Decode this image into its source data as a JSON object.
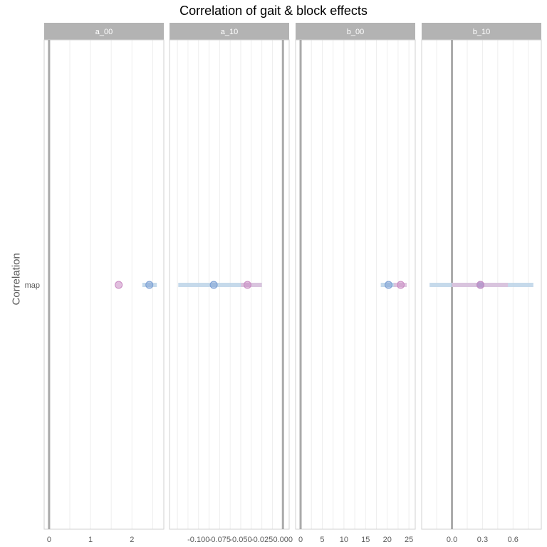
{
  "chart_data": {
    "type": "scatter",
    "title": "Correlation of gait & block effects",
    "ylabel": "Correlation",
    "xlabel": "",
    "categories": [
      "map"
    ],
    "series_colors": {
      "blue": "#7a9fd4",
      "pink": "#c98ac2",
      "blue_interval": "#bcd4e8",
      "pink_interval": "#dcc0dc"
    },
    "panels": [
      {
        "name": "a_00",
        "xlim": [
          -0.05,
          2.7
        ],
        "ticks": [
          "0",
          "1",
          "2"
        ],
        "tick_values": [
          0,
          1,
          2
        ],
        "points": [
          {
            "series": "pink",
            "value": 1.68,
            "interval": null
          },
          {
            "series": "blue",
            "value": 2.42,
            "interval": [
              2.25,
              2.6
            ]
          }
        ]
      },
      {
        "name": "a_10",
        "xlim": [
          -0.131,
          0.004
        ],
        "ticks": [
          "-0.100",
          "-0.075",
          "-0.050",
          "-0.025",
          "0.000"
        ],
        "tick_values": [
          -0.1,
          -0.075,
          -0.05,
          -0.025,
          0
        ],
        "points": [
          {
            "series": "blue",
            "value": -0.082,
            "interval": [
              -0.124,
              -0.025
            ]
          },
          {
            "series": "pink",
            "value": -0.042,
            "interval": [
              -0.05,
              -0.025
            ]
          }
        ]
      },
      {
        "name": "b_00",
        "xlim": [
          -0.5,
          25.8
        ],
        "ticks": [
          "0",
          "5",
          "10",
          "15",
          "20",
          "25"
        ],
        "tick_values": [
          0,
          5,
          10,
          15,
          20,
          25
        ],
        "points": [
          {
            "series": "blue",
            "value": 20.3,
            "interval": [
              18.5,
              22.0
            ]
          },
          {
            "series": "pink",
            "value": 23.1,
            "interval": [
              21.5,
              24.5
            ]
          }
        ]
      },
      {
        "name": "b_10",
        "xlim": [
          -0.27,
          0.85
        ],
        "ticks": [
          "0.0",
          "0.3",
          "0.6"
        ],
        "tick_values": [
          0,
          0.3,
          0.6
        ],
        "points": [
          {
            "series": "blue",
            "value": 0.28,
            "interval": [
              -0.22,
              0.8
            ]
          },
          {
            "series": "pink",
            "value": 0.28,
            "interval": [
              0.0,
              0.55
            ]
          }
        ]
      }
    ],
    "legend": "none"
  }
}
